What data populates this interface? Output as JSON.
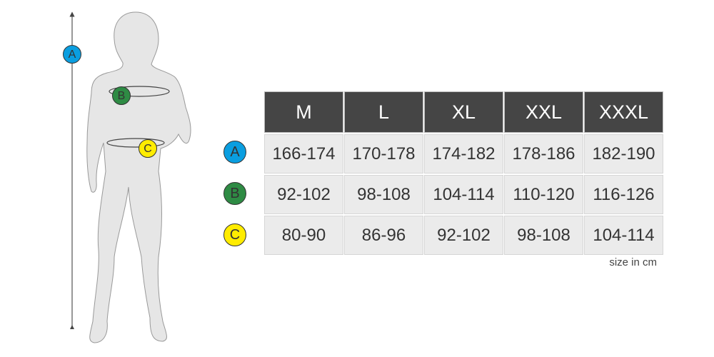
{
  "colors": {
    "header_bg": "#454545",
    "cell_bg": "#ebebeb",
    "A": "#0a9ee0",
    "B": "#2e8b44",
    "C": "#ffec00"
  },
  "figure": {
    "labels": [
      "A",
      "B",
      "C"
    ]
  },
  "table": {
    "headers": [
      "M",
      "L",
      "XL",
      "XXL",
      "XXXL"
    ],
    "rows": [
      {
        "label": "A",
        "values": [
          "166-174",
          "170-178",
          "174-182",
          "178-186",
          "182-190"
        ]
      },
      {
        "label": "B",
        "values": [
          "92-102",
          "98-108",
          "104-114",
          "110-120",
          "116-126"
        ]
      },
      {
        "label": "C",
        "values": [
          "80-90",
          "86-96",
          "92-102",
          "98-108",
          "104-114"
        ]
      }
    ]
  },
  "note": "size in cm"
}
